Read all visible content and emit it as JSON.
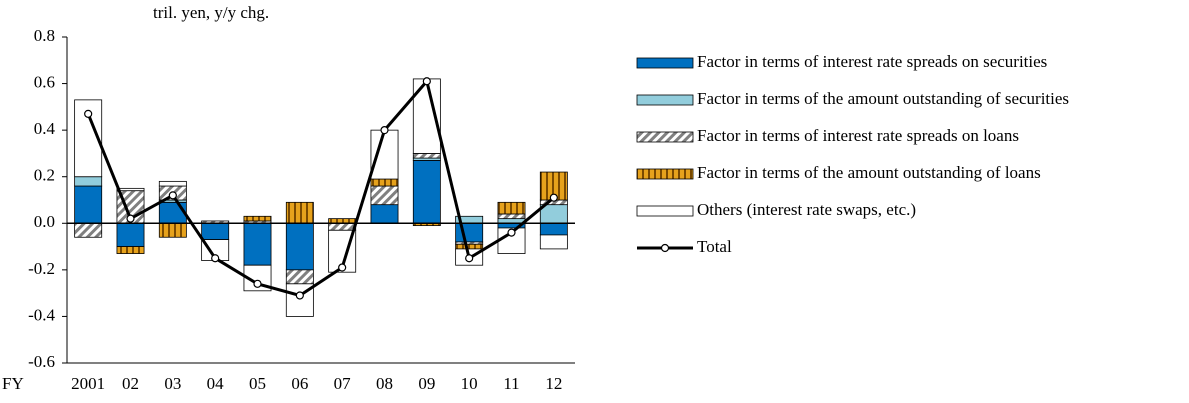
{
  "chart_data": {
    "type": "stacked-bar-line",
    "ylabel": "tril. yen, y/y chg.",
    "xlabel": "FY",
    "categories": [
      "2001",
      "02",
      "03",
      "04",
      "05",
      "06",
      "07",
      "08",
      "09",
      "10",
      "11",
      "12"
    ],
    "series": [
      {
        "name": "Factor in terms of interest rate spreads on securities",
        "color": "#0070c0",
        "values": [
          0.16,
          -0.1,
          0.09,
          -0.07,
          -0.18,
          -0.2,
          0,
          0.08,
          0.27,
          -0.08,
          -0.02,
          -0.05
        ]
      },
      {
        "name": "Factor in terms of the amount outstanding of securities",
        "color": "#92cddc",
        "values": [
          0.04,
          0,
          0.01,
          0,
          0,
          0,
          0,
          0,
          0.01,
          0.03,
          0.02,
          0.08
        ]
      },
      {
        "name": "Factor in terms of interest rate spreads on loans",
        "color": "#808080",
        "values": [
          -0.06,
          0.14,
          0.06,
          0.01,
          0.01,
          -0.06,
          -0.03,
          0.08,
          0.02,
          -0.01,
          0.02,
          0.02
        ]
      },
      {
        "name": "Factor in terms of the amount outstanding of loans",
        "color": "#e6a21c",
        "values": [
          0,
          -0.03,
          -0.06,
          0,
          0.02,
          0.09,
          0.02,
          0.03,
          -0.01,
          -0.02,
          0.05,
          0.12
        ]
      },
      {
        "name": "Others (interest rate swaps, etc.)",
        "color": "#ffffff",
        "values": [
          0.33,
          0.01,
          0.02,
          -0.09,
          -0.11,
          -0.14,
          -0.18,
          0.21,
          0.32,
          -0.07,
          -0.11,
          -0.06
        ]
      },
      {
        "name": "Total",
        "color": "#000000",
        "line": true,
        "values": [
          0.47,
          0.02,
          0.12,
          -0.15,
          -0.26,
          -0.31,
          -0.19,
          0.4,
          0.61,
          -0.15,
          -0.04,
          0.11
        ]
      }
    ],
    "ylim": [
      -0.6,
      0.8
    ],
    "yticks": [
      -0.6,
      -0.4,
      -0.2,
      {
        "value": 0,
        "label": "0.0"
      },
      0.2,
      0.4,
      0.6,
      0.8
    ]
  }
}
